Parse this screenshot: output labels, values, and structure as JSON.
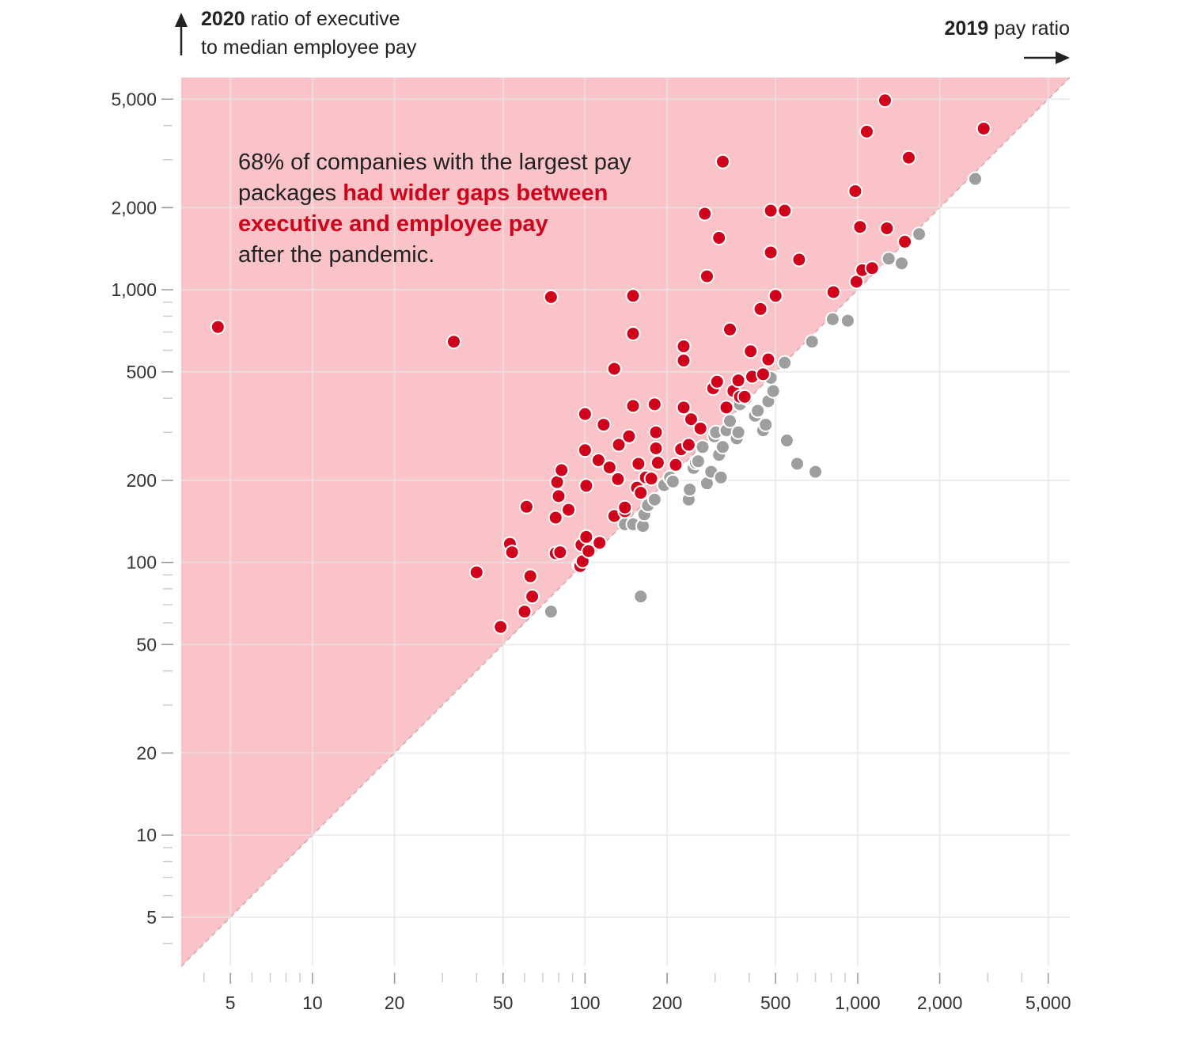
{
  "y_title": {
    "bold": "2020",
    "rest_line1": " ratio of executive",
    "line2": "to median employee pay"
  },
  "x_title": {
    "bold": "2019",
    "rest": " pay ratio"
  },
  "annotation": {
    "part1": "68% of companies with the largest pay packages ",
    "highlight": "had wider gaps between executive and employee pay",
    "part2": "after the pandemic."
  },
  "colors": {
    "wider": "#d0021b",
    "narrower": "#9e9e9e",
    "shade": "#f9c3c8",
    "grid": "#e6e6e6"
  },
  "chart_data": {
    "type": "scatter",
    "xlabel": "2019 pay ratio",
    "ylabel": "2020 ratio of executive to median employee pay",
    "x_scale": "log",
    "y_scale": "log",
    "xlim": [
      3.3,
      6000
    ],
    "ylim": [
      3.3,
      6000
    ],
    "x_ticks": [
      5,
      10,
      20,
      50,
      100,
      200,
      500,
      1000,
      2000,
      5000
    ],
    "x_tick_labels": [
      "5",
      "10",
      "20",
      "50",
      "100",
      "200",
      "500",
      "1,000",
      "2,000",
      "5,000"
    ],
    "y_ticks": [
      5,
      10,
      20,
      50,
      100,
      200,
      500,
      1000,
      2000,
      5000
    ],
    "y_tick_labels": [
      "5",
      "10",
      "20",
      "50",
      "100",
      "200",
      "500",
      "1,000",
      "2,000",
      "5,000"
    ],
    "grid": true,
    "reference_line": "y = x",
    "series": [
      {
        "name": "had wider gaps between executive and employee pay",
        "color": "#d0021b",
        "points": [
          [
            4.5,
            730
          ],
          [
            33,
            645
          ],
          [
            40,
            92
          ],
          [
            49,
            58
          ],
          [
            53,
            117
          ],
          [
            54,
            109
          ],
          [
            60,
            66
          ],
          [
            61,
            160
          ],
          [
            63,
            89
          ],
          [
            64,
            75
          ],
          [
            75,
            940
          ],
          [
            78,
            146
          ],
          [
            78,
            108
          ],
          [
            79,
            197
          ],
          [
            80,
            175
          ],
          [
            81,
            109
          ],
          [
            82,
            218
          ],
          [
            87,
            156
          ],
          [
            95,
            98
          ],
          [
            96,
            97
          ],
          [
            97,
            116
          ],
          [
            98,
            101
          ],
          [
            100,
            350
          ],
          [
            100,
            258
          ],
          [
            101,
            191
          ],
          [
            101,
            124
          ],
          [
            103,
            110
          ],
          [
            112,
            237
          ],
          [
            113,
            118
          ],
          [
            117,
            320
          ],
          [
            123,
            223
          ],
          [
            128,
            513
          ],
          [
            128,
            148
          ],
          [
            132,
            202
          ],
          [
            133,
            270
          ],
          [
            140,
            154
          ],
          [
            140,
            159
          ],
          [
            145,
            290
          ],
          [
            150,
            690
          ],
          [
            150,
            375
          ],
          [
            150,
            950
          ],
          [
            155,
            188
          ],
          [
            157,
            230
          ],
          [
            160,
            180
          ],
          [
            167,
            205
          ],
          [
            175,
            203
          ],
          [
            180,
            380
          ],
          [
            182,
            300
          ],
          [
            182,
            262
          ],
          [
            185,
            232
          ],
          [
            215,
            228
          ],
          [
            225,
            260
          ],
          [
            230,
            550
          ],
          [
            230,
            620
          ],
          [
            230,
            370
          ],
          [
            240,
            270
          ],
          [
            245,
            335
          ],
          [
            265,
            310
          ],
          [
            275,
            1900
          ],
          [
            280,
            1120
          ],
          [
            295,
            435
          ],
          [
            305,
            460
          ],
          [
            310,
            1550
          ],
          [
            320,
            2950
          ],
          [
            330,
            370
          ],
          [
            340,
            715
          ],
          [
            350,
            425
          ],
          [
            365,
            465
          ],
          [
            370,
            405
          ],
          [
            385,
            405
          ],
          [
            405,
            595
          ],
          [
            410,
            480
          ],
          [
            440,
            850
          ],
          [
            450,
            490
          ],
          [
            470,
            555
          ],
          [
            480,
            1370
          ],
          [
            480,
            1950
          ],
          [
            500,
            950
          ],
          [
            540,
            1950
          ],
          [
            610,
            1290
          ],
          [
            815,
            980
          ],
          [
            980,
            2300
          ],
          [
            990,
            1070
          ],
          [
            1020,
            1700
          ],
          [
            1040,
            1180
          ],
          [
            1080,
            3800
          ],
          [
            1130,
            1200
          ],
          [
            1260,
            4950
          ],
          [
            1280,
            1680
          ],
          [
            1490,
            1500
          ],
          [
            1540,
            3050
          ],
          [
            2900,
            3900
          ]
        ]
      },
      {
        "name": "",
        "color": "#9e9e9e",
        "points": [
          [
            75,
            66
          ],
          [
            140,
            138
          ],
          [
            150,
            138
          ],
          [
            160,
            75
          ],
          [
            163,
            136
          ],
          [
            165,
            150
          ],
          [
            170,
            162
          ],
          [
            180,
            170
          ],
          [
            195,
            192
          ],
          [
            205,
            205
          ],
          [
            210,
            198
          ],
          [
            240,
            170
          ],
          [
            242,
            185
          ],
          [
            250,
            222
          ],
          [
            255,
            232
          ],
          [
            260,
            235
          ],
          [
            270,
            265
          ],
          [
            280,
            195
          ],
          [
            290,
            215
          ],
          [
            298,
            290
          ],
          [
            302,
            300
          ],
          [
            310,
            248
          ],
          [
            315,
            205
          ],
          [
            320,
            265
          ],
          [
            330,
            305
          ],
          [
            340,
            330
          ],
          [
            360,
            285
          ],
          [
            365,
            300
          ],
          [
            370,
            380
          ],
          [
            390,
            400
          ],
          [
            420,
            345
          ],
          [
            430,
            360
          ],
          [
            450,
            305
          ],
          [
            460,
            320
          ],
          [
            470,
            390
          ],
          [
            480,
            475
          ],
          [
            490,
            425
          ],
          [
            540,
            540
          ],
          [
            550,
            280
          ],
          [
            600,
            230
          ],
          [
            680,
            645
          ],
          [
            700,
            215
          ],
          [
            810,
            780
          ],
          [
            920,
            770
          ],
          [
            1300,
            1300
          ],
          [
            1450,
            1250
          ],
          [
            1680,
            1600
          ],
          [
            2700,
            2550
          ]
        ]
      }
    ]
  }
}
